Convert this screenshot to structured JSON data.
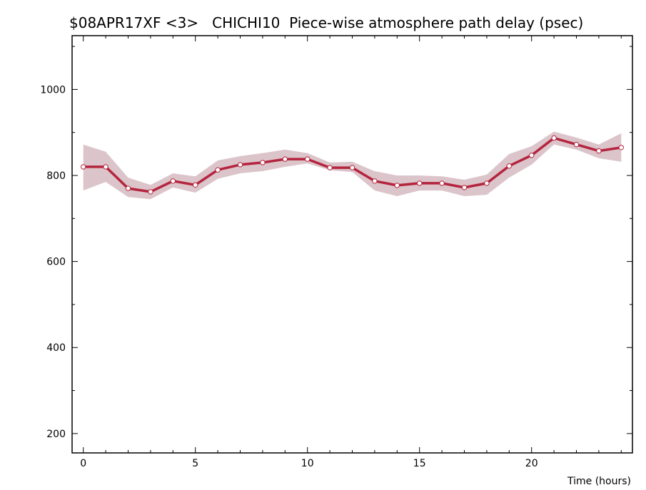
{
  "chart_data": {
    "type": "line",
    "title": "$08APR17XF <3>   CHICHI10  Piece-wise atmosphere path delay (psec)",
    "xlabel": "Time (hours)",
    "ylabel": "",
    "xlim": [
      -0.5,
      24.5
    ],
    "ylim": [
      155,
      1125
    ],
    "xticks": [
      0,
      5,
      10,
      15,
      20
    ],
    "yticks": [
      200,
      400,
      600,
      800,
      1000
    ],
    "grid": false,
    "legend": "none",
    "series": [
      {
        "x": [
          0,
          1,
          2,
          3,
          4,
          5,
          6,
          7,
          8,
          9,
          10,
          11,
          12,
          13,
          14,
          15,
          16,
          17,
          18,
          19,
          20,
          21,
          22,
          23,
          24
        ],
        "values": [
          820,
          820,
          770,
          762,
          787,
          778,
          813,
          825,
          830,
          838,
          838,
          818,
          818,
          787,
          777,
          782,
          782,
          772,
          782,
          822,
          847,
          887,
          872,
          857,
          865
        ],
        "upper": [
          872,
          855,
          795,
          778,
          805,
          798,
          835,
          845,
          852,
          860,
          852,
          830,
          832,
          810,
          800,
          800,
          798,
          790,
          802,
          850,
          868,
          902,
          888,
          872,
          898
        ],
        "lower": [
          765,
          785,
          750,
          745,
          772,
          760,
          792,
          805,
          810,
          820,
          828,
          812,
          808,
          765,
          752,
          765,
          765,
          752,
          755,
          795,
          825,
          872,
          860,
          840,
          832
        ]
      }
    ],
    "colors": {
      "line": "#b5243e",
      "band": "#dcc5ca",
      "marker_fill": "#ffffff"
    }
  }
}
